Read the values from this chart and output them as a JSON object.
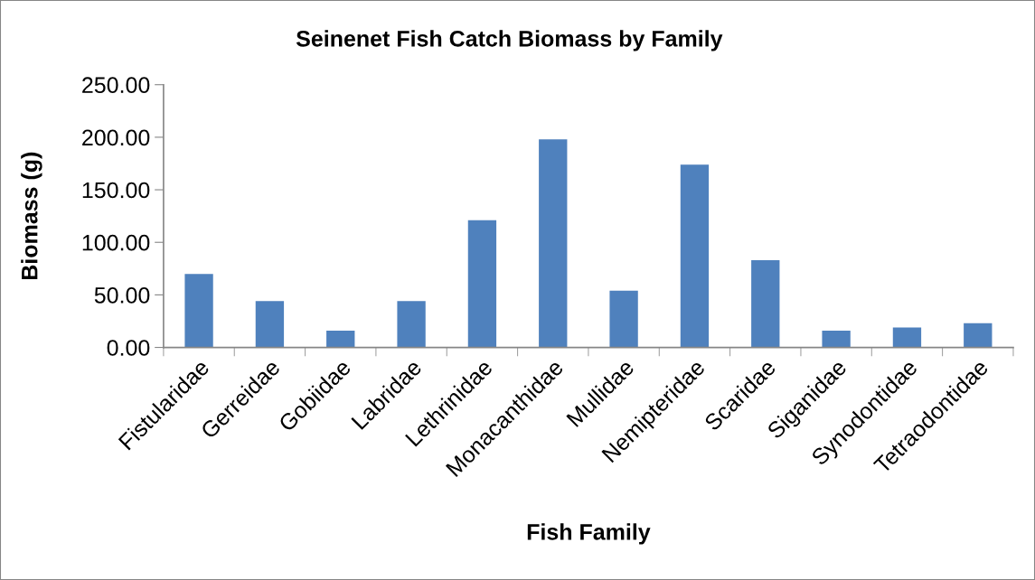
{
  "chart_data": {
    "type": "bar",
    "title": "Seinenet Fish Catch Biomass by Family",
    "xlabel": "Fish Family",
    "ylabel": "Biomass (g)",
    "categories": [
      "Fistularidae",
      "Gerreidae",
      "Gobiidae",
      "Labridae",
      "Lethrinidae",
      "Monacanthidae",
      "Mullidae",
      "Nemipteridae",
      "Scaridae",
      "Siganidae",
      "Synodontidae",
      "Tetraodontidae"
    ],
    "values": [
      70,
      44,
      16,
      44,
      121,
      198,
      54,
      174,
      83,
      16,
      19,
      23
    ],
    "color": "#4f81bd",
    "ylim": [
      0,
      250
    ],
    "yticks": [
      {
        "value": 0,
        "label": "0.00"
      },
      {
        "value": 50,
        "label": "50.00"
      },
      {
        "value": 100,
        "label": "100.00"
      },
      {
        "value": 150,
        "label": "150.00"
      },
      {
        "value": 200,
        "label": "200.00"
      },
      {
        "value": 250,
        "label": "250.00"
      }
    ],
    "grid": false,
    "legend": false
  }
}
